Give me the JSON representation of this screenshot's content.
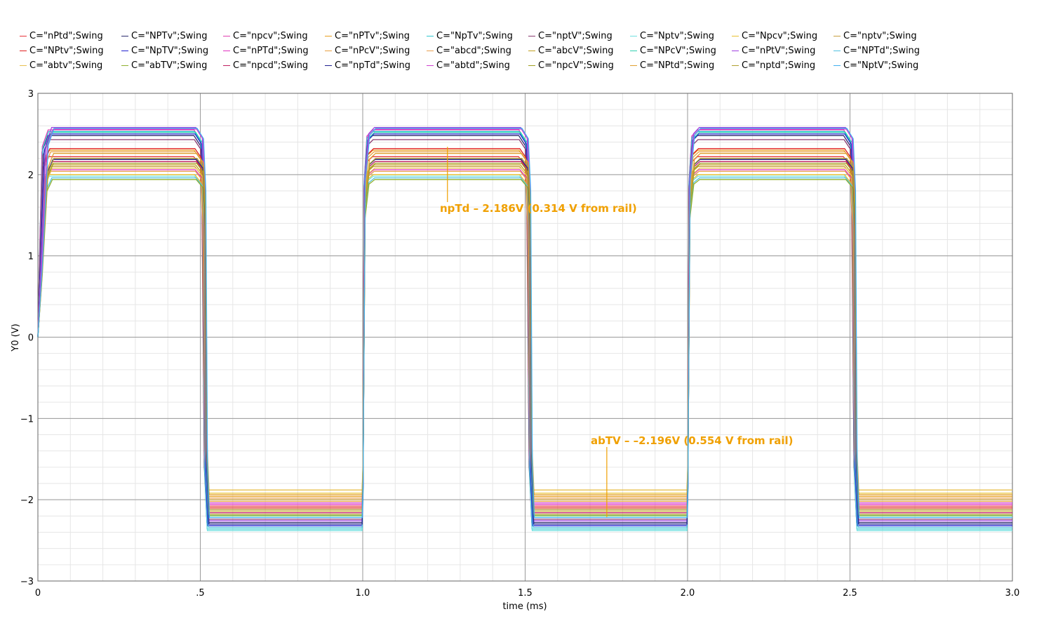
{
  "chart_data": {
    "type": "line",
    "title": "",
    "xlabel": "time (ms)",
    "ylabel": "Y0 (V)",
    "xlim": [
      0,
      3.0
    ],
    "ylim": [
      -3,
      3
    ],
    "x_ticks": [
      {
        "value": 0,
        "label": "0"
      },
      {
        "value": 0.5,
        "label": ".5"
      },
      {
        "value": 1.0,
        "label": "1.0"
      },
      {
        "value": 1.5,
        "label": "1.5"
      },
      {
        "value": 2.0,
        "label": "2.0"
      },
      {
        "value": 2.5,
        "label": "2.5"
      },
      {
        "value": 3.0,
        "label": "3.0"
      }
    ],
    "y_ticks": [
      {
        "value": 3,
        "label": "3"
      },
      {
        "value": 2,
        "label": "2"
      },
      {
        "value": 1,
        "label": "1"
      },
      {
        "value": 0,
        "label": "0"
      },
      {
        "value": -1,
        "label": "−1"
      },
      {
        "value": -2,
        "label": "−2"
      },
      {
        "value": -3,
        "label": "−3"
      }
    ],
    "grid": true,
    "legend_position": "top",
    "series": [
      {
        "name": "C=\"nPtd\";Swing",
        "color": "#e8353a",
        "high": 2.22,
        "low": -2.08
      },
      {
        "name": "C=\"NPTv\";Swing",
        "color": "#2b2b6e",
        "high": 2.48,
        "low": -2.28
      },
      {
        "name": "C=\"npcv\";Swing",
        "color": "#e040b0",
        "high": 2.55,
        "low": -2.12
      },
      {
        "name": "C=\"nPTv\";Swing",
        "color": "#e8a020",
        "high": 2.3,
        "low": -1.96
      },
      {
        "name": "C=\"NpTv\";Swing",
        "color": "#30c8d0",
        "high": 2.53,
        "low": -2.36
      },
      {
        "name": "C=\"nptV\";Swing",
        "color": "#8a3a70",
        "high": 2.43,
        "low": -2.24
      },
      {
        "name": "C=\"Nptv\";Swing",
        "color": "#70e0e0",
        "high": 1.98,
        "low": -2.38
      },
      {
        "name": "C=\"Npcv\";Swing",
        "color": "#e8c030",
        "high": 2.0,
        "low": -1.92
      },
      {
        "name": "C=\"nptv\";Swing",
        "color": "#c8a040",
        "high": 2.1,
        "low": -2.0
      },
      {
        "name": "C=\"NPtv\";Swing",
        "color": "#e02020",
        "high": 2.32,
        "low": -2.1
      },
      {
        "name": "C=\"NpTV\";Swing",
        "color": "#2020d0",
        "high": 2.5,
        "low": -2.32
      },
      {
        "name": "C=\"nPTd\";Swing",
        "color": "#e030c0",
        "high": 2.06,
        "low": -2.06
      },
      {
        "name": "C=\"nPcV\";Swing",
        "color": "#e8a040",
        "high": 2.28,
        "low": -2.02
      },
      {
        "name": "C=\"abcd\";Swing",
        "color": "#e8a050",
        "high": 2.04,
        "low": -1.98
      },
      {
        "name": "C=\"abcV\";Swing",
        "color": "#c0a020",
        "high": 2.12,
        "low": -2.14
      },
      {
        "name": "C=\"NPcV\";Swing",
        "color": "#30d0b0",
        "high": 2.52,
        "low": -2.2
      },
      {
        "name": "C=\"nPtV\";Swing",
        "color": "#a040e0",
        "high": 2.58,
        "low": -2.26
      },
      {
        "name": "C=\"NPTd\";Swing",
        "color": "#50c0e0",
        "high": 1.96,
        "low": -2.34
      },
      {
        "name": "C=\"abtv\";Swing",
        "color": "#e8c050",
        "high": 2.08,
        "low": -1.88
      },
      {
        "name": "C=\"abTV\";Swing",
        "color": "#90b030",
        "high": 1.94,
        "low": -2.196
      },
      {
        "name": "C=\"npcd\";Swing",
        "color": "#c02060",
        "high": 2.16,
        "low": -2.16
      },
      {
        "name": "C=\"npTd\";Swing",
        "color": "#202090",
        "high": 2.186,
        "low": -2.3
      },
      {
        "name": "C=\"abtd\";Swing",
        "color": "#d040d0",
        "high": 2.56,
        "low": -2.04
      },
      {
        "name": "C=\"npcV\";Swing",
        "color": "#a0a020",
        "high": 2.14,
        "low": -2.18
      },
      {
        "name": "C=\"NPtd\";Swing",
        "color": "#e0a030",
        "high": 2.26,
        "low": -1.94
      },
      {
        "name": "C=\"nptd\";Swing",
        "color": "#b0a030",
        "high": 2.2,
        "low": -2.12
      },
      {
        "name": "C=\"NptV\";Swing",
        "color": "#40b0f0",
        "high": 2.57,
        "low": -2.22
      }
    ],
    "annotations": [
      {
        "text": "npTd – 2.186V (0.314 V from rail)",
        "x": 1.25,
        "y": 2.186,
        "color": "#f0a000"
      },
      {
        "text": "abTV – –2.196V (0.554 V from rail)",
        "x": 1.76,
        "y": -2.196,
        "color": "#f0a000"
      }
    ]
  }
}
